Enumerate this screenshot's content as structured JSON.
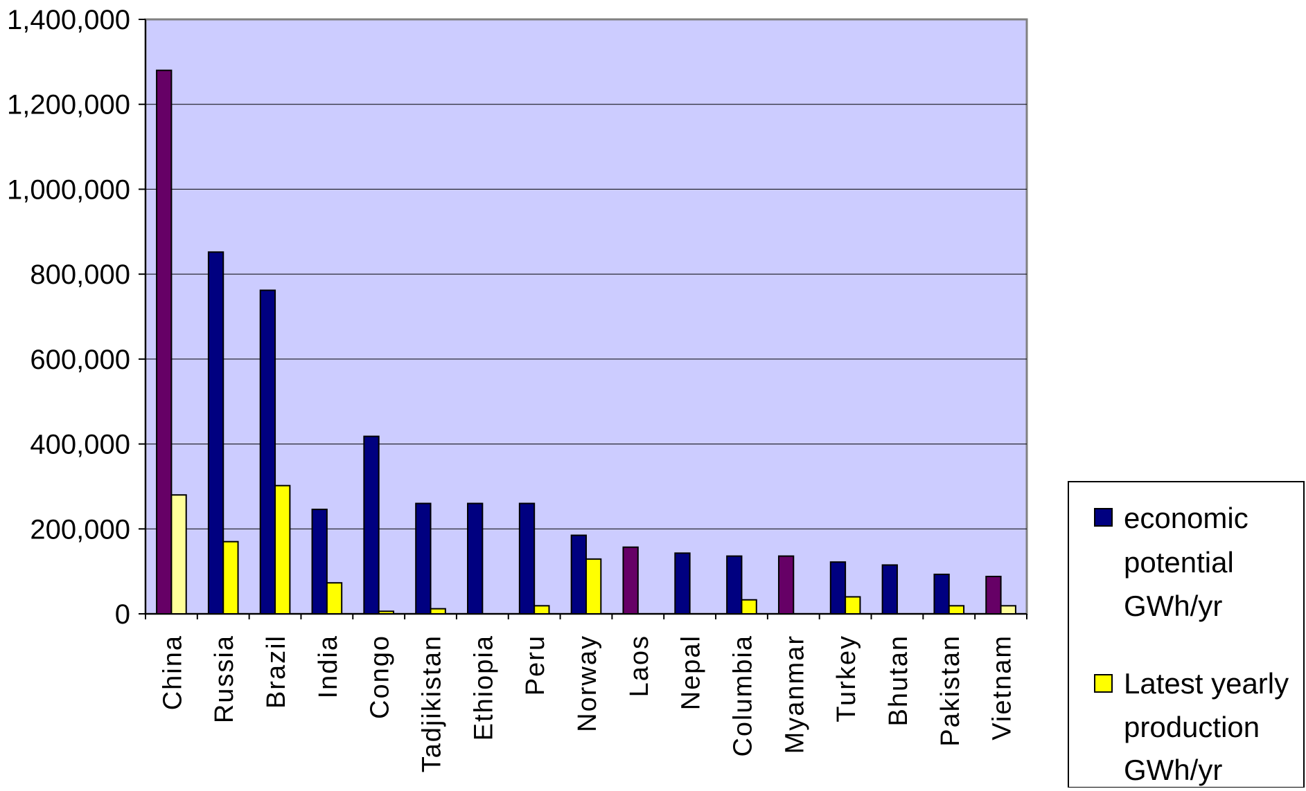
{
  "chart_data": {
    "type": "bar",
    "title": "",
    "xlabel": "",
    "ylabel": "",
    "ylim": [
      0,
      1400000
    ],
    "yticks": [
      0,
      200000,
      400000,
      600000,
      800000,
      1000000,
      1200000,
      1400000
    ],
    "ytick_labels": [
      "0",
      "200,000",
      "400,000",
      "600,000",
      "800,000",
      "1,000,000",
      "1,200,000",
      "1,400,000"
    ],
    "grid": true,
    "legend_position": "bottom-right",
    "plot_background": "#ccccff",
    "categories": [
      "China",
      "Russia",
      "Brazil",
      "India",
      "Congo",
      "Tadjikistan",
      "Ethiopia",
      "Peru",
      "Norway",
      "Laos",
      "Nepal",
      "Columbia",
      "Myanmar",
      "Turkey",
      "Bhutan",
      "Pakistan",
      "Vietnam"
    ],
    "series": [
      {
        "name": "economic potential GWh/yr",
        "legend_lines": [
          "economic",
          "potential",
          "GWh/yr"
        ],
        "color": "#000080",
        "highlight_color": "#660066",
        "values": [
          1280000,
          852000,
          762000,
          246000,
          418000,
          260000,
          260000,
          260000,
          185000,
          157000,
          143000,
          136000,
          136000,
          122000,
          115000,
          93000,
          88000
        ]
      },
      {
        "name": "Latest yearly production GWh/yr",
        "legend_lines": [
          "Latest yearly",
          "production",
          "GWh/yr"
        ],
        "color": "#ffff00",
        "highlight_color": "#ffff99",
        "values": [
          280000,
          170000,
          302000,
          73000,
          6000,
          12000,
          0,
          19000,
          129000,
          0,
          0,
          33000,
          0,
          40000,
          0,
          19000,
          19000
        ]
      }
    ],
    "highlighted_categories": [
      "China",
      "Laos",
      "Myanmar",
      "Vietnam"
    ]
  }
}
